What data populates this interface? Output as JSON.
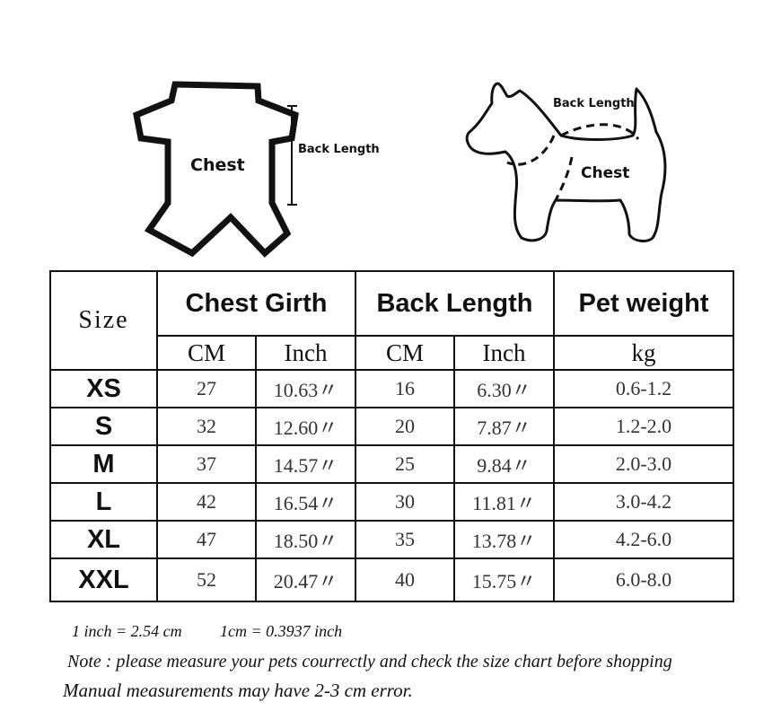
{
  "diagram_left": {
    "chest_label": "Chest",
    "back_length_label": "Back Length"
  },
  "diagram_right": {
    "back_length_label": "Back Length",
    "chest_label": "Chest"
  },
  "table": {
    "headers": {
      "size": "Size",
      "chest_girth": "Chest Girth",
      "back_length": "Back Length",
      "pet_weight": "Pet weight"
    },
    "units": {
      "chest_cm": "CM",
      "chest_inch": "Inch",
      "back_cm": "CM",
      "back_inch": "Inch",
      "weight": "kg"
    },
    "rows": [
      {
        "size": "XS",
        "chest_cm": "27",
        "chest_inch": "10.63〃",
        "back_cm": "16",
        "back_inch": "6.30〃",
        "weight": "0.6-1.2"
      },
      {
        "size": "S",
        "chest_cm": "32",
        "chest_inch": "12.60〃",
        "back_cm": "20",
        "back_inch": "7.87〃",
        "weight": "1.2-2.0"
      },
      {
        "size": "M",
        "chest_cm": "37",
        "chest_inch": "14.57〃",
        "back_cm": "25",
        "back_inch": "9.84〃",
        "weight": "2.0-3.0"
      },
      {
        "size": "L",
        "chest_cm": "42",
        "chest_inch": "16.54〃",
        "back_cm": "30",
        "back_inch": "11.81〃",
        "weight": "3.0-4.2"
      },
      {
        "size": "XL",
        "chest_cm": "47",
        "chest_inch": "18.50〃",
        "back_cm": "35",
        "back_inch": "13.78〃",
        "weight": "4.2-6.0"
      },
      {
        "size": "XXL",
        "chest_cm": "52",
        "chest_inch": "20.47〃",
        "back_cm": "40",
        "back_inch": "15.75〃",
        "weight": "6.0-8.0"
      }
    ]
  },
  "notes": {
    "conversion_inch": "1 inch = 2.54 cm",
    "conversion_cm": "1cm = 0.3937 inch",
    "measure_note": "Note : please measure your pets courrectly and check the size chart before shopping",
    "error_note": "Manual measurements may have 2-3 cm error."
  }
}
